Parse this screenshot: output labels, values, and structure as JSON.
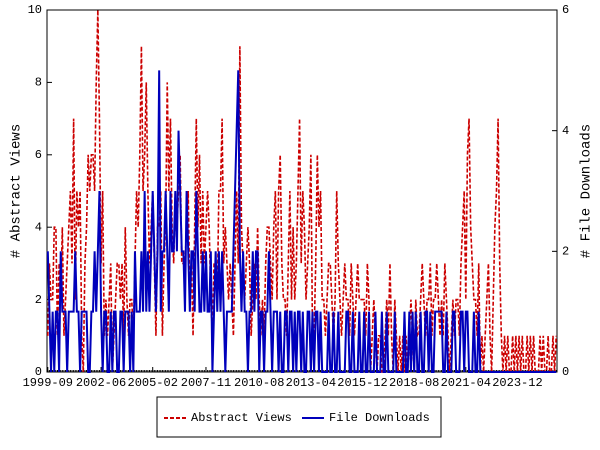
{
  "chart_data": {
    "type": "line",
    "y_label": "# Abstract Views",
    "y2_label": "# File Downloads",
    "x": [
      "1999-09",
      "1999-10",
      "1999-11",
      "1999-12",
      "2000-01",
      "2000-02",
      "2000-03",
      "2000-04",
      "2000-05",
      "2000-06",
      "2000-07",
      "2000-08",
      "2000-09",
      "2000-10",
      "2000-11",
      "2000-12",
      "2001-01",
      "2001-02",
      "2001-03",
      "2001-04",
      "2001-05",
      "2001-06",
      "2001-07",
      "2001-08",
      "2001-09",
      "2001-10",
      "2001-11",
      "2001-12",
      "2002-01",
      "2002-02",
      "2002-03",
      "2002-04",
      "2002-05",
      "2002-06",
      "2002-07",
      "2002-08",
      "2002-09",
      "2002-10",
      "2002-11",
      "2002-12",
      "2003-01",
      "2003-02",
      "2003-03",
      "2003-04",
      "2003-05",
      "2003-06",
      "2003-07",
      "2003-08",
      "2003-09",
      "2003-10",
      "2003-11",
      "2003-12",
      "2004-01",
      "2004-02",
      "2004-03",
      "2004-04",
      "2004-05",
      "2004-06",
      "2004-07",
      "2004-08",
      "2004-09",
      "2004-10",
      "2004-11",
      "2004-12",
      "2005-01",
      "2005-02",
      "2005-03",
      "2005-04",
      "2005-05",
      "2005-06",
      "2005-07",
      "2005-08",
      "2005-09",
      "2005-10",
      "2005-11",
      "2005-12",
      "2006-01",
      "2006-02",
      "2006-03",
      "2006-04",
      "2006-05",
      "2006-06",
      "2006-07",
      "2006-08",
      "2006-09",
      "2006-10",
      "2006-11",
      "2006-12",
      "2007-01",
      "2007-02",
      "2007-03",
      "2007-04",
      "2007-05",
      "2007-06",
      "2007-07",
      "2007-08",
      "2007-09",
      "2007-10",
      "2007-11",
      "2007-12",
      "2008-01",
      "2008-02",
      "2008-03",
      "2008-04",
      "2008-05",
      "2008-06",
      "2008-07",
      "2008-08",
      "2008-09",
      "2008-10",
      "2008-11",
      "2008-12",
      "2009-01",
      "2009-02",
      "2009-03",
      "2009-04",
      "2009-05",
      "2009-06",
      "2009-07",
      "2009-08",
      "2009-09",
      "2009-10",
      "2009-11",
      "2009-12",
      "2010-01",
      "2010-02",
      "2010-03",
      "2010-04",
      "2010-05",
      "2010-06",
      "2010-07",
      "2010-08",
      "2010-09",
      "2010-10",
      "2010-11",
      "2010-12",
      "2011-01",
      "2011-02",
      "2011-03",
      "2011-04",
      "2011-05",
      "2011-06",
      "2011-07",
      "2011-08",
      "2011-09",
      "2011-10",
      "2011-11",
      "2011-12",
      "2012-01",
      "2012-02",
      "2012-03",
      "2012-04",
      "2012-05",
      "2012-06",
      "2012-07",
      "2012-08",
      "2012-09",
      "2012-10",
      "2012-11",
      "2012-12",
      "2013-01",
      "2013-02",
      "2013-03",
      "2013-04",
      "2013-05",
      "2013-06",
      "2013-07",
      "2013-08",
      "2013-09",
      "2013-10",
      "2013-11",
      "2013-12",
      "2014-01",
      "2014-02",
      "2014-03",
      "2014-04",
      "2014-05",
      "2014-06",
      "2014-07",
      "2014-08",
      "2014-09",
      "2014-10",
      "2014-11",
      "2014-12",
      "2015-01",
      "2015-02",
      "2015-03",
      "2015-04",
      "2015-05",
      "2015-06",
      "2015-07",
      "2015-08",
      "2015-09",
      "2015-10",
      "2015-11",
      "2015-12",
      "2016-01",
      "2016-02",
      "2016-03",
      "2016-04",
      "2016-05",
      "2016-06",
      "2016-07",
      "2016-08",
      "2016-09",
      "2016-10",
      "2016-11",
      "2016-12",
      "2017-01",
      "2017-02",
      "2017-03",
      "2017-04",
      "2017-05",
      "2017-06",
      "2017-07",
      "2017-08",
      "2017-09",
      "2017-10",
      "2017-11",
      "2017-12",
      "2018-01",
      "2018-02",
      "2018-03",
      "2018-04",
      "2018-05",
      "2018-06",
      "2018-07",
      "2018-08",
      "2018-09",
      "2018-10",
      "2018-11",
      "2018-12",
      "2019-01",
      "2019-02",
      "2019-03",
      "2019-04",
      "2019-05",
      "2019-06",
      "2019-07",
      "2019-08",
      "2019-09",
      "2019-10",
      "2019-11",
      "2019-12",
      "2020-01",
      "2020-02",
      "2020-03",
      "2020-04",
      "2020-05",
      "2020-06",
      "2020-07",
      "2020-08",
      "2020-09",
      "2020-10",
      "2020-11",
      "2020-12",
      "2021-01",
      "2021-02",
      "2021-03",
      "2021-04",
      "2021-05",
      "2021-06",
      "2021-07",
      "2021-08",
      "2021-09",
      "2021-10",
      "2021-11",
      "2021-12",
      "2022-01",
      "2022-02",
      "2022-03",
      "2022-04",
      "2022-05",
      "2022-06",
      "2022-07",
      "2022-08",
      "2022-09",
      "2022-10",
      "2022-11",
      "2022-12",
      "2023-01",
      "2023-02",
      "2023-03",
      "2023-04",
      "2023-05",
      "2023-06",
      "2023-07",
      "2023-08",
      "2023-09",
      "2023-10",
      "2023-11",
      "2023-12",
      "2024-01",
      "2024-02",
      "2024-03",
      "2024-04",
      "2024-05",
      "2024-06",
      "2024-07",
      "2024-08",
      "2024-09",
      "2024-10",
      "2024-11",
      "2024-12",
      "2025-01",
      "2025-02",
      "2025-03",
      "2025-04",
      "2025-05",
      "2025-06",
      "2025-07",
      "2025-08",
      "2025-09",
      "2025-10",
      "2025-11",
      "2025-12"
    ],
    "xticks": [
      "1999-09",
      "2002-06",
      "2005-02",
      "2007-11",
      "2010-08",
      "2013-04",
      "2015-12",
      "2018-08",
      "2021-04",
      "2023-12"
    ],
    "series": [
      {
        "name": "Abstract Views",
        "color": "#cc0000",
        "dashed": true,
        "values": [
          1,
          3,
          2,
          2,
          4,
          4,
          1,
          3,
          2,
          4,
          1,
          2,
          3,
          4,
          5,
          3,
          7,
          2,
          5,
          4,
          5,
          1,
          0,
          3,
          4,
          6,
          5,
          6,
          6,
          5,
          8,
          10,
          7,
          3,
          5,
          1,
          2,
          1,
          2,
          3,
          0,
          1,
          2,
          3,
          3,
          2,
          3,
          1,
          4,
          2,
          1,
          2,
          2,
          1,
          3,
          5,
          4,
          6,
          9,
          5,
          6,
          8,
          5,
          3,
          4,
          5,
          3,
          1,
          4,
          4,
          5,
          1,
          3,
          4,
          8,
          5,
          7,
          4,
          3,
          5,
          4,
          5,
          6,
          3,
          3,
          3,
          4,
          5,
          2,
          3,
          1,
          4,
          7,
          4,
          6,
          3,
          5,
          3,
          4,
          5,
          4,
          2,
          1,
          3,
          3,
          2,
          5,
          5,
          7,
          3,
          4,
          3,
          2,
          3,
          2,
          1,
          3,
          5,
          3,
          9,
          4,
          3,
          2,
          3,
          4,
          3,
          1,
          2,
          3,
          2,
          4,
          2,
          1,
          2,
          1,
          3,
          4,
          4,
          3,
          2,
          4,
          5,
          2,
          5,
          6,
          3,
          2,
          2,
          1,
          3,
          5,
          2,
          4,
          2,
          3,
          5,
          7,
          3,
          5,
          4,
          2,
          3,
          4,
          6,
          1,
          1,
          3,
          6,
          4,
          5,
          2,
          2,
          1,
          2,
          3,
          3,
          2,
          1,
          2,
          5,
          3,
          2,
          1,
          2,
          3,
          2,
          2,
          1,
          3,
          2,
          1,
          2,
          3,
          2,
          2,
          2,
          2,
          1,
          3,
          2,
          0,
          1,
          2,
          1,
          0,
          1,
          1,
          0,
          0,
          1,
          2,
          1,
          3,
          1,
          0,
          2,
          1,
          0,
          1,
          0,
          1,
          0,
          1,
          0,
          1,
          2,
          1,
          0,
          2,
          1,
          1,
          2,
          3,
          2,
          1,
          2,
          2,
          3,
          1,
          2,
          2,
          3,
          2,
          1,
          2,
          1,
          3,
          2,
          1,
          0,
          1,
          2,
          1,
          2,
          2,
          1,
          3,
          4,
          5,
          2,
          6,
          7,
          4,
          3,
          2,
          2,
          1,
          3,
          0,
          1,
          0,
          1,
          2,
          3,
          1,
          0,
          2,
          4,
          5,
          7,
          3,
          1,
          0,
          1,
          0,
          1,
          0,
          0,
          1,
          0,
          1,
          0,
          1,
          0,
          1,
          0,
          0,
          1,
          0,
          1,
          0,
          1,
          0,
          0,
          0,
          1,
          0,
          1,
          0,
          0,
          1,
          0,
          0,
          1,
          0,
          1
        ]
      },
      {
        "name": "File Downloads",
        "color": "#0000bb",
        "axis": "y2",
        "values": [
          2,
          1,
          0,
          1,
          0,
          1,
          1,
          0,
          2,
          1,
          1,
          1,
          0,
          1,
          1,
          1,
          1,
          2,
          1,
          1,
          0,
          1,
          1,
          1,
          1,
          0,
          0,
          1,
          1,
          2,
          1,
          2,
          3,
          1,
          0,
          1,
          1,
          0,
          0,
          1,
          0,
          1,
          1,
          0,
          0,
          1,
          1,
          0,
          1,
          1,
          1,
          0,
          1,
          0,
          2,
          1,
          1,
          1,
          2,
          1,
          3,
          1,
          2,
          1,
          2,
          3,
          2,
          1,
          2,
          5,
          1,
          2,
          2,
          3,
          2,
          1,
          3,
          2,
          2,
          3,
          2,
          4,
          3,
          2,
          2,
          1,
          3,
          2,
          1,
          2,
          2,
          1,
          3,
          2,
          1,
          1,
          2,
          1,
          2,
          1,
          1,
          2,
          0,
          1,
          2,
          1,
          2,
          1,
          2,
          1,
          0,
          1,
          1,
          1,
          1,
          2,
          3,
          4,
          5,
          2,
          1,
          2,
          1,
          1,
          0,
          1,
          1,
          2,
          1,
          2,
          2,
          0,
          1,
          1,
          0,
          1,
          1,
          2,
          1,
          0,
          1,
          1,
          1,
          0,
          1,
          0,
          0,
          1,
          1,
          0,
          1,
          1,
          0,
          1,
          0,
          1,
          1,
          0,
          1,
          0,
          0,
          1,
          1,
          0,
          1,
          0,
          1,
          1,
          0,
          1,
          0,
          0,
          0,
          0,
          1,
          0,
          0,
          1,
          0,
          0,
          1,
          0,
          0,
          0,
          0,
          1,
          1,
          0,
          0,
          1,
          0,
          0,
          0,
          1,
          0,
          0,
          1,
          0,
          0,
          1,
          0,
          0,
          0,
          1,
          0,
          0,
          0,
          1,
          0,
          0,
          1,
          0,
          0,
          0,
          0,
          1,
          0,
          0,
          0,
          0,
          0,
          1,
          0,
          0,
          1,
          0,
          1,
          0,
          1,
          0,
          0,
          1,
          0,
          0,
          1,
          1,
          0,
          1,
          0,
          0,
          1,
          1,
          1,
          1,
          1,
          0,
          0,
          1,
          0,
          0,
          0,
          1,
          1,
          0,
          0,
          0,
          1,
          1,
          0,
          1,
          1,
          0,
          0,
          0,
          1,
          0,
          0,
          1,
          0,
          0,
          0,
          0,
          0,
          0,
          0,
          0,
          0,
          0,
          0,
          0,
          0,
          0,
          0,
          0,
          0,
          0,
          0,
          0,
          0,
          0,
          0,
          0,
          0,
          0,
          0,
          0,
          0,
          0,
          0,
          0,
          0,
          0,
          0,
          0,
          0,
          0,
          0,
          0,
          0,
          0,
          0,
          0,
          0,
          0,
          0,
          0
        ]
      }
    ],
    "ylim": [
      0,
      10
    ],
    "yticks": [
      0,
      2,
      4,
      6,
      8,
      10
    ],
    "y2lim": [
      0,
      6
    ],
    "y2ticks": [
      0,
      2,
      4,
      6
    ],
    "legend": "bottom"
  }
}
